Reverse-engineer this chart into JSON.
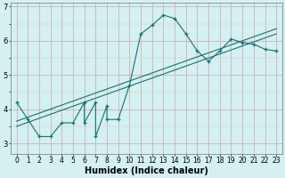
{
  "xlabel": "Humidex (Indice chaleur)",
  "bg_color": "#d4f0f0",
  "grid_color_major": "#c8a8a8",
  "grid_color_minor": "#d8c8c8",
  "line_color": "#1a7070",
  "xlim": [
    -0.5,
    23.5
  ],
  "ylim": [
    2.7,
    7.1
  ],
  "xticks": [
    0,
    1,
    2,
    3,
    4,
    5,
    6,
    7,
    8,
    9,
    10,
    11,
    12,
    13,
    14,
    15,
    16,
    17,
    18,
    19,
    20,
    21,
    22,
    23
  ],
  "yticks": [
    3,
    4,
    5,
    6,
    7
  ],
  "x_data": [
    0,
    1,
    2,
    3,
    4,
    5,
    6,
    6,
    7,
    7,
    8,
    8,
    9,
    10,
    11,
    12,
    13,
    14,
    15,
    16,
    17,
    18,
    19,
    20,
    21,
    22,
    23
  ],
  "y_data": [
    4.2,
    3.7,
    3.2,
    3.2,
    3.6,
    3.6,
    4.2,
    3.6,
    4.2,
    3.2,
    4.1,
    3.7,
    3.7,
    4.7,
    6.2,
    6.45,
    6.75,
    6.65,
    6.2,
    5.7,
    5.4,
    5.7,
    6.05,
    5.95,
    5.9,
    5.75,
    5.7
  ],
  "trend1_x": [
    0,
    23
  ],
  "trend1_y": [
    3.5,
    6.2
  ],
  "trend2_x": [
    0,
    23
  ],
  "trend2_y": [
    3.65,
    6.35
  ],
  "xlabel_fontsize": 7,
  "tick_fontsize": 5.5
}
